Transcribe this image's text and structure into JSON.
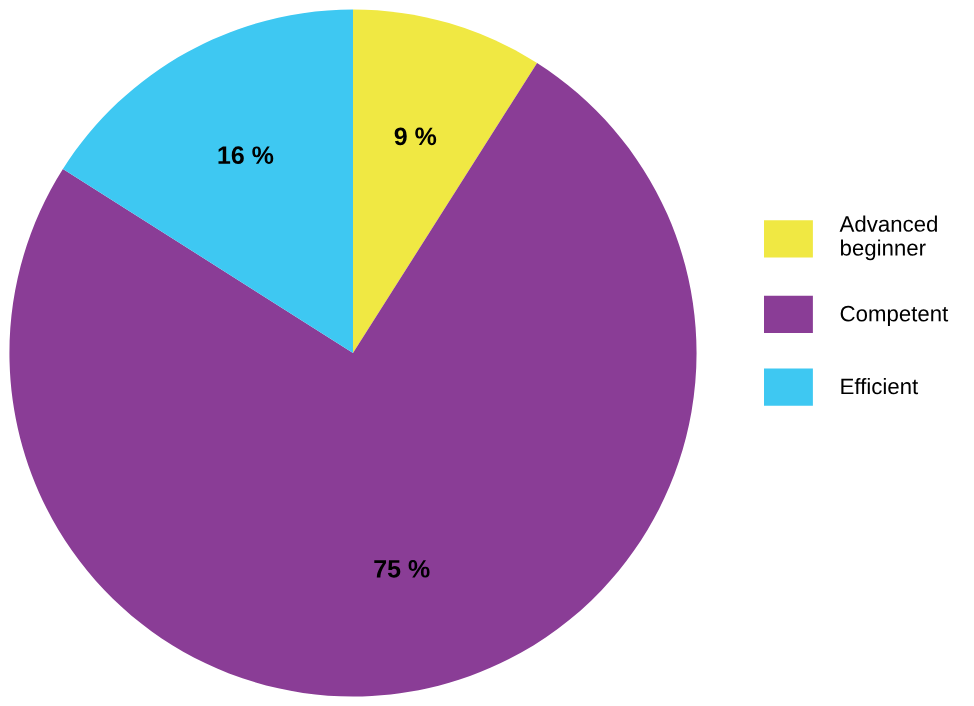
{
  "chart_data": {
    "type": "pie",
    "categories": [
      "Advanced\nbeginner",
      "Competent",
      "Efficient"
    ],
    "values": [
      9,
      75,
      16
    ],
    "colors": [
      "#f0e843",
      "#8a3d96",
      "#3ec8f2"
    ],
    "value_labels": [
      "9 %",
      "75 %",
      "16 %"
    ],
    "legend": "right"
  }
}
